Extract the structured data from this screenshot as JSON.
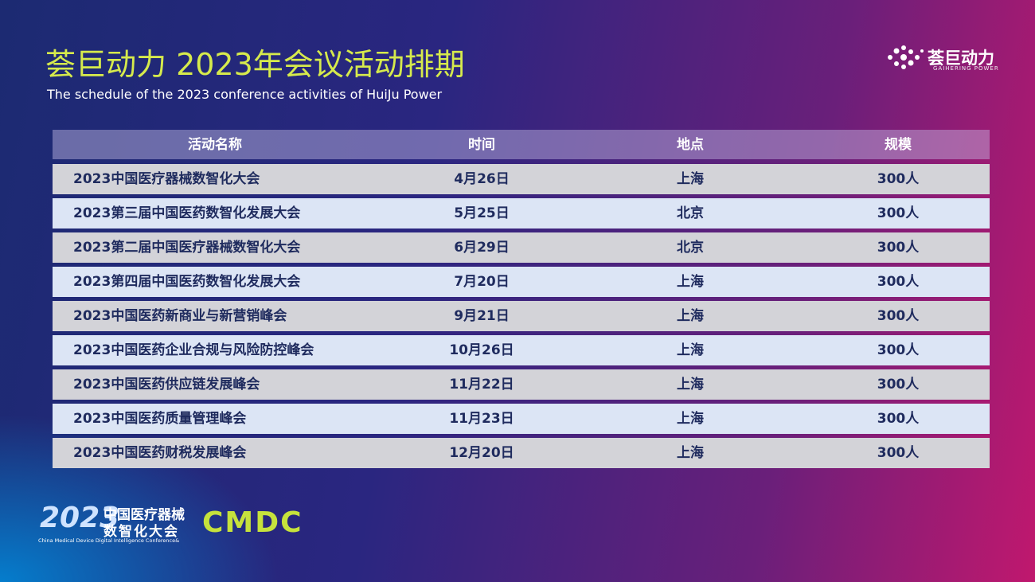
{
  "header": {
    "title": "荟巨动力 2023年会议活动排期",
    "subtitle": "The schedule of the 2023 conference activities of HuiJu Power",
    "logo_text": "荟巨动力",
    "logo_subtext": "GAIHERING POWER"
  },
  "table": {
    "columns": [
      "活动名称",
      "时间",
      "地点",
      "规模"
    ],
    "rows": [
      [
        "2023中国医疗器械数智化大会",
        "4月26日",
        "上海",
        "300人"
      ],
      [
        "2023第三届中国医药数智化发展大会",
        "5月25日",
        "北京",
        "300人"
      ],
      [
        "2023第二届中国医疗器械数智化大会",
        "6月29日",
        "北京",
        "300人"
      ],
      [
        "2023第四届中国医药数智化发展大会",
        "7月20日",
        "上海",
        "300人"
      ],
      [
        "2023中国医药新商业与新营销峰会",
        "9月21日",
        "上海",
        "300人"
      ],
      [
        "2023中国医药企业合规与风险防控峰会",
        "10月26日",
        "上海",
        "300人"
      ],
      [
        "2023中国医药供应链发展峰会",
        "11月22日",
        "上海",
        "300人"
      ],
      [
        "2023中国医药质量管理峰会",
        "11月23日",
        "上海",
        "300人"
      ],
      [
        "2023中国医药财税发展峰会",
        "12月20日",
        "上海",
        "300人"
      ]
    ]
  },
  "footer": {
    "year": "2023",
    "name_line1": "中国医疗器械",
    "name_line2": "数智化大会",
    "english": "China Medical Device Digital Intelligence Conference&",
    "brand": "CMDC"
  }
}
